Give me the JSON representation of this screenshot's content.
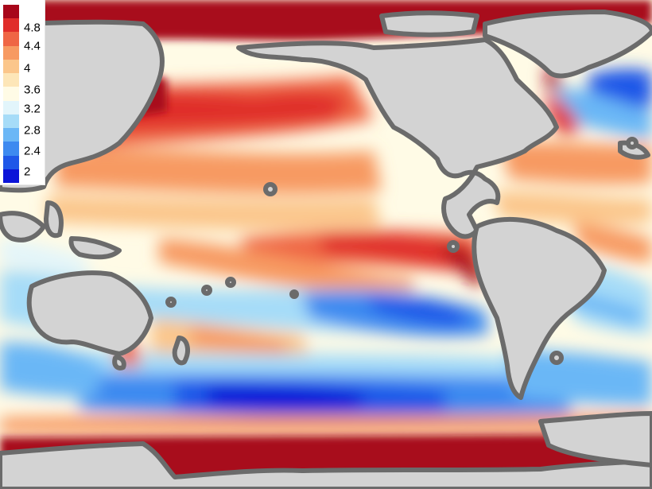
{
  "legend": {
    "colors": [
      "#0b14d8",
      "#1f57e8",
      "#3d8af0",
      "#6bb7f6",
      "#a6dcf8",
      "#e2f5fb",
      "#fffbe6",
      "#fde6b8",
      "#fbc68b",
      "#f79a62",
      "#ef6645",
      "#e02d2a",
      "#a8071a"
    ],
    "labels": [
      "4.8",
      "4.4",
      "4",
      "3.6",
      "3.2",
      "2.8",
      "2.4",
      "2"
    ]
  },
  "map_colors": {
    "land": "#d3d3d3",
    "coast": "#6b6b6b",
    "ocean_base": "#fffbe6"
  }
}
